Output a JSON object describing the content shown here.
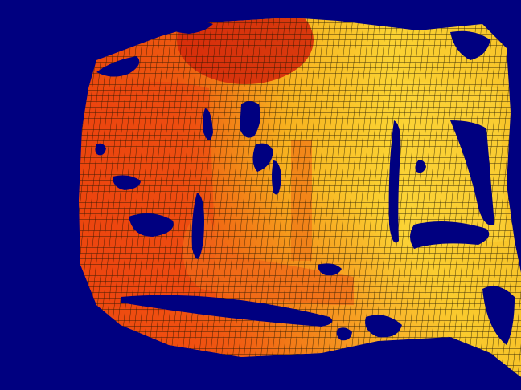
{
  "image": {
    "kind": "depth-map-mesh-render",
    "colors": {
      "background": "#000080",
      "near": "#e52a0a",
      "mid": "#f57a12",
      "far": "#f9c423",
      "farthest": "#fde03a",
      "mesh_line": "#1a1200",
      "hole": "#000080"
    }
  }
}
